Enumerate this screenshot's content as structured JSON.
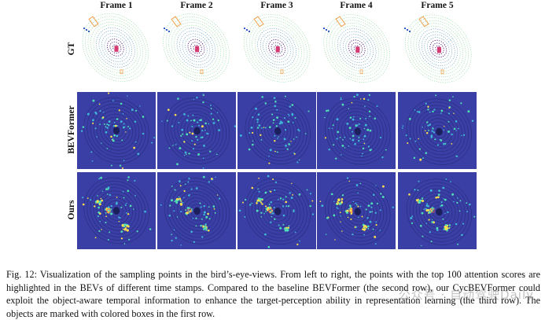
{
  "figure": {
    "columns": [
      "Frame 1",
      "Frame 2",
      "Frame 3",
      "Frame 4",
      "Frame 5"
    ],
    "rows": [
      "GT",
      "BEVFormer",
      "Ours"
    ],
    "colors": {
      "gt_background": "#ffffff",
      "bev_background": "#3a3fa6",
      "point_bright": "#ffe14d",
      "point_mid": "#4fe0b5",
      "point_dim": "#3fb7d8",
      "box_orange": "#f2a04a",
      "box_blue": "#2a52c8"
    }
  },
  "caption": {
    "text": "Fig. 12: Visualization of the sampling points in the bird’s-eye-views. From left to right, the points with the top 100 attention scores are highlighted in the BEVs of different time stamps. Compared to the baseline BEVFormer (the second row), our CycBEVFormer could exploit the object-aware temporal information to enhance the target-perception ability in representation learning (the third row). The objects are marked with colored boxes in the first row."
  },
  "watermark": {
    "text": "公众号 · 自动驾驶Daily"
  }
}
